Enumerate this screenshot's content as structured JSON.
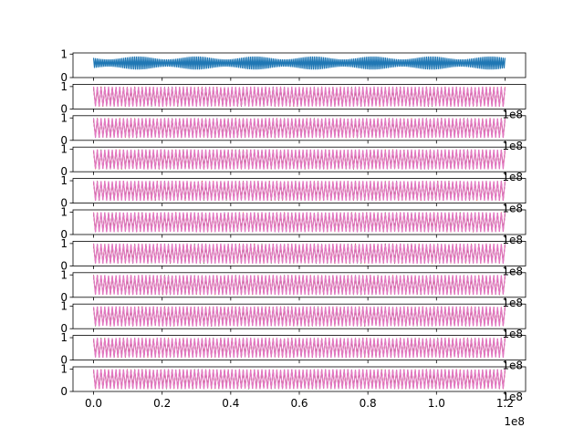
{
  "chart_data": {
    "type": "line",
    "title": "",
    "xlabel": "",
    "ylabel": "",
    "x_offset_text": "1e8",
    "xlim": [
      -6000000,
      126000000
    ],
    "x_ticks": [
      0,
      20000000,
      40000000,
      60000000,
      80000000,
      100000000,
      120000000
    ],
    "x_tick_labels": [
      "0.0",
      "0.2",
      "0.4",
      "0.6",
      "0.8",
      "1.0",
      "1.2"
    ],
    "y_tick_labels": [
      "0",
      "1"
    ],
    "series_colors": [
      "#1f77b4",
      "#ff7f0e",
      "#2ca02c",
      "#d62728",
      "#9467bd",
      "#8c564b",
      "#e377c2"
    ],
    "panels": [
      {
        "ylim": [
          0,
          1.05
        ],
        "series": [
          {
            "color": "#1f77b4",
            "x_range": [
              0,
              120000000
            ],
            "mean": 0.62,
            "amplitude": 0.28,
            "envelope_cycles": 7,
            "envelope_depth": 0.45
          }
        ]
      },
      {
        "ylim": [
          0,
          1.1
        ],
        "series_range": [
          0.1,
          1.0
        ]
      },
      {
        "ylim": [
          0,
          1.1
        ],
        "series_range": [
          0.1,
          1.0
        ]
      },
      {
        "ylim": [
          0,
          1.1
        ],
        "series_range": [
          0.1,
          1.0
        ]
      },
      {
        "ylim": [
          0,
          1.1
        ],
        "series_range": [
          0.1,
          1.0
        ]
      },
      {
        "ylim": [
          0,
          1.1
        ],
        "series_range": [
          0.1,
          1.0
        ]
      },
      {
        "ylim": [
          0,
          1.1
        ],
        "series_range": [
          0.1,
          1.0
        ]
      },
      {
        "ylim": [
          0,
          1.1
        ],
        "series_range": [
          0.1,
          1.0
        ]
      },
      {
        "ylim": [
          0,
          1.1
        ],
        "series_range": [
          0.1,
          1.0
        ]
      },
      {
        "ylim": [
          0,
          1.1
        ],
        "series_range": [
          0.1,
          1.0
        ]
      },
      {
        "ylim": [
          0,
          1.1
        ],
        "series_range": [
          0.1,
          1.0
        ]
      }
    ]
  }
}
